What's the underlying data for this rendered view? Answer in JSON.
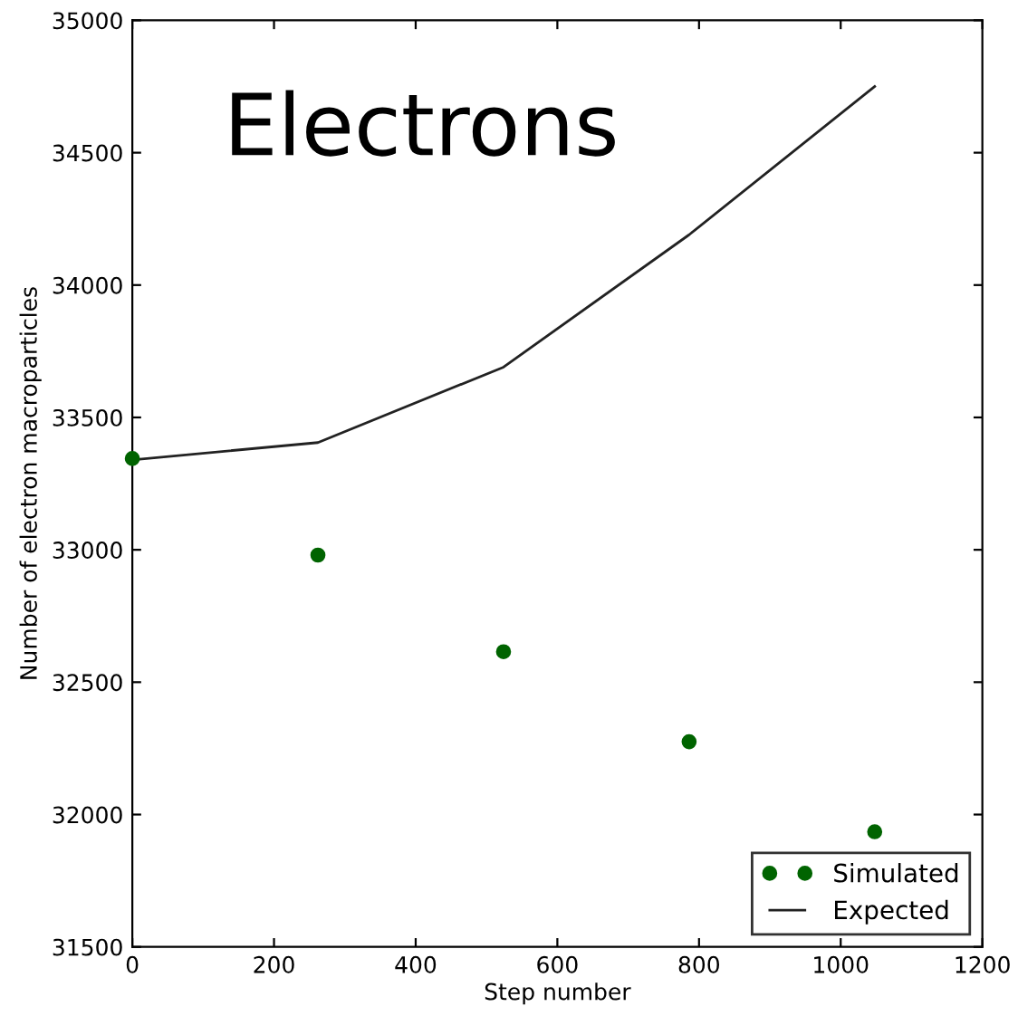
{
  "chart_data": {
    "type": "line",
    "xlabel": "Step number",
    "ylabel": "Number of electron macroparticles",
    "annotations": [
      "Electrons"
    ],
    "xlim": [
      0,
      1200
    ],
    "xticks": [
      0,
      200,
      400,
      600,
      800,
      1000,
      1200
    ],
    "ylim": [
      31500,
      35000
    ],
    "yticks": [
      31500,
      32000,
      32500,
      33000,
      33500,
      34000,
      34500,
      35000
    ],
    "grid": false,
    "legend": "lower right",
    "series": [
      {
        "name": "Simulated",
        "type": "scatter",
        "color": "#006400",
        "marker": "circle",
        "x": [
          0,
          262,
          524,
          786,
          1048
        ],
        "values": [
          33345,
          32980,
          32615,
          32275,
          31935
        ]
      },
      {
        "name": "Expected",
        "color": "#222222",
        "x": [
          0,
          262,
          524,
          786,
          1048
        ],
        "values": [
          33340,
          33405,
          33690,
          34190,
          34750
        ]
      }
    ]
  }
}
